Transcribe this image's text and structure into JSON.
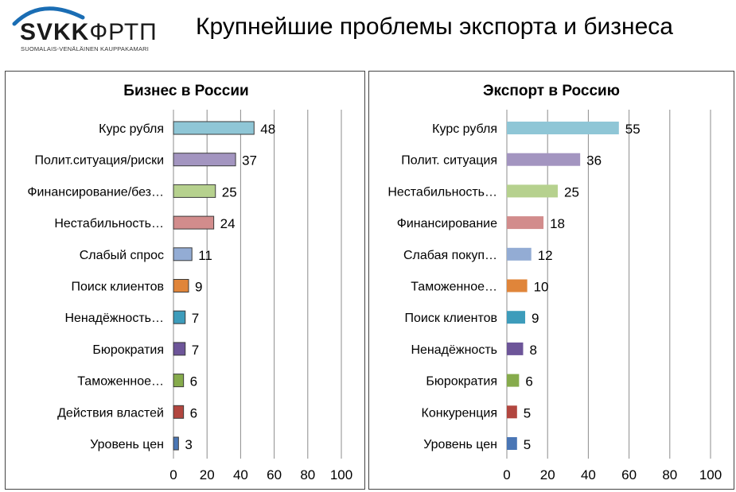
{
  "header": {
    "logo": {
      "name_latin": "SVKK",
      "name_cyrillic": "ФРТП",
      "subtitle": "SUOMALAIS-VENÄLÄINEN KAUPPAKAMARI",
      "brand_color": "#1a6db4"
    },
    "title": "Крупнейшие проблемы экспорта и бизнеса"
  },
  "chart_data": [
    {
      "type": "bar",
      "orientation": "horizontal",
      "title": "Бизнес в России",
      "categories": [
        "Курс рубля",
        "Полит.ситуация/риски",
        "Финансирование/без…",
        "Нестабильность…",
        "Слабый спрос",
        "Поиск клиентов",
        "Ненадёжность…",
        "Бюрократия",
        "Таможенное…",
        "Действия властей",
        "Уровень цен"
      ],
      "values": [
        48,
        37,
        25,
        24,
        11,
        9,
        7,
        7,
        6,
        6,
        3
      ],
      "colors": [
        "#8fc6d6",
        "#a395c0",
        "#b6d18e",
        "#d28c8c",
        "#93acd4",
        "#e0853a",
        "#3d9cbb",
        "#6d5599",
        "#86ab4c",
        "#b2463f",
        "#4a76b5"
      ],
      "xlim": [
        0,
        100
      ],
      "xticks": [
        0,
        20,
        40,
        60,
        80,
        100
      ],
      "grid": true,
      "data_labels": true
    },
    {
      "type": "bar",
      "orientation": "horizontal",
      "title": "Экспорт в Россию",
      "categories": [
        "Курс рубля",
        "Полит. ситуация",
        "Нестабильность…",
        "Финансирование",
        "Слабая покуп…",
        "Таможенное…",
        "Поиск клиентов",
        "Ненадёжность",
        "Бюрократия",
        "Конкуренция",
        "Уровень цен"
      ],
      "values": [
        55,
        36,
        25,
        18,
        12,
        10,
        9,
        8,
        6,
        5,
        5
      ],
      "colors": [
        "#8fc6d6",
        "#a395c0",
        "#b6d18e",
        "#d28c8c",
        "#93acd4",
        "#e0853a",
        "#3d9cbb",
        "#6d5599",
        "#86ab4c",
        "#b2463f",
        "#4a76b5"
      ],
      "xlim": [
        0,
        100
      ],
      "xticks": [
        0,
        20,
        40,
        60,
        80,
        100
      ],
      "grid": true,
      "data_labels": true
    }
  ]
}
